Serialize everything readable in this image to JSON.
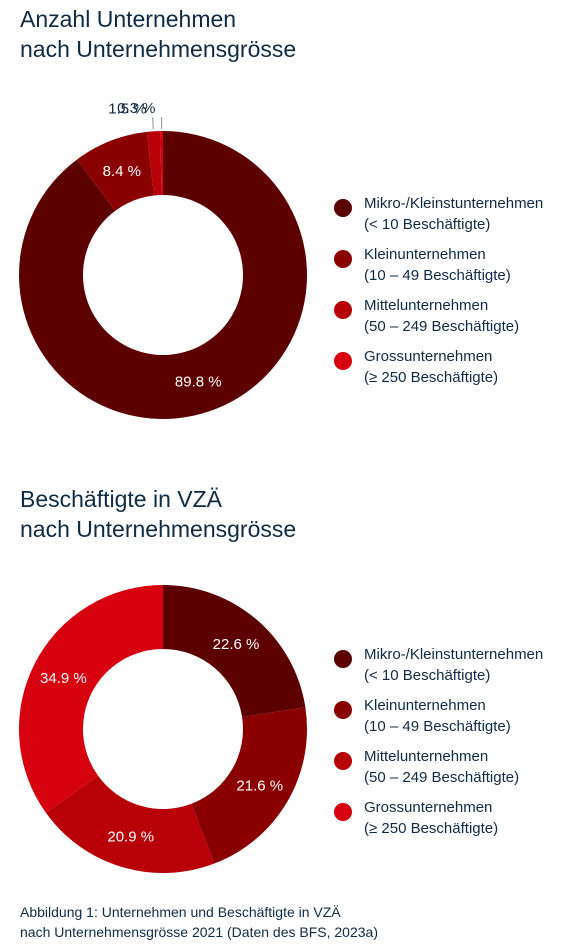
{
  "chart_data": [
    {
      "type": "pie",
      "title_lines": [
        "Anzahl Unternehmen",
        "nach Unternehmensgrösse"
      ],
      "categories": [
        "Mikro-/Kleinstunternehmen (<10 Beschäftigte)",
        "Kleinunternehmen (10–49 Beschäftigte)",
        "Mittelunternehmen (50–249 Beschäftigte)",
        "Grossunternehmen (≥ 250 Beschäftigte)"
      ],
      "values": [
        89.8,
        8.4,
        1.5,
        0.3
      ],
      "value_labels": [
        "89.8 %",
        "8.4 %",
        "1.5 %",
        "0.3 %"
      ],
      "colors": [
        "#5c0000",
        "#8a0000",
        "#b70008",
        "#d6000f"
      ],
      "legend": [
        {
          "line1": "Mikro-/Kleinstunternehmen",
          "line2": "(< 10 Beschäftigte)"
        },
        {
          "line1": "Kleinunternehmen",
          "line2": "(10 – 49 Beschäftigte)"
        },
        {
          "line1": "Mittelunternehmen",
          "line2": "(50 – 249 Beschäftigte)"
        },
        {
          "line1": "Grossunternehmen",
          "line2": "(≥ 250 Beschäftigte)"
        }
      ],
      "legend_position": "right",
      "donut": true
    },
    {
      "type": "pie",
      "title_lines": [
        "Beschäftigte in VZÄ",
        "nach Unternehmensgrösse"
      ],
      "categories": [
        "Mikro-/Kleinstunternehmen (<10 Beschäftigte)",
        "Kleinunternehmen (10–49 Beschäftigte)",
        "Mittelunternehmen (50–249 Beschäftigte)",
        "Grossunternehmen (≥ 250 Beschäftigte)"
      ],
      "values": [
        22.6,
        21.6,
        20.9,
        34.9
      ],
      "value_labels": [
        "22.6 %",
        "21.6 %",
        "20.9 %",
        "34.9 %"
      ],
      "colors": [
        "#5c0000",
        "#8a0000",
        "#b70008",
        "#d6000f"
      ],
      "legend": [
        {
          "line1": "Mikro-/Kleinstunternehmen",
          "line2": "(< 10 Beschäftigte)"
        },
        {
          "line1": "Kleinunternehmen",
          "line2": "(10 – 49 Beschäftigte)"
        },
        {
          "line1": "Mittelunternehmen",
          "line2": "(50 – 249 Beschäftigte)"
        },
        {
          "line1": "Grossunternehmen",
          "line2": "(≥ 250 Beschäftigte)"
        }
      ],
      "legend_position": "right",
      "donut": true
    }
  ],
  "caption": {
    "line1": "Abbildung 1: Unternehmen und Beschäftigte in VZÄ",
    "line2": "nach Unternehmensgrösse 2021 (Daten des BFS, 2023a)"
  },
  "colors": {
    "text": "#0f2a44",
    "label_on_slice": "#ffffff"
  }
}
